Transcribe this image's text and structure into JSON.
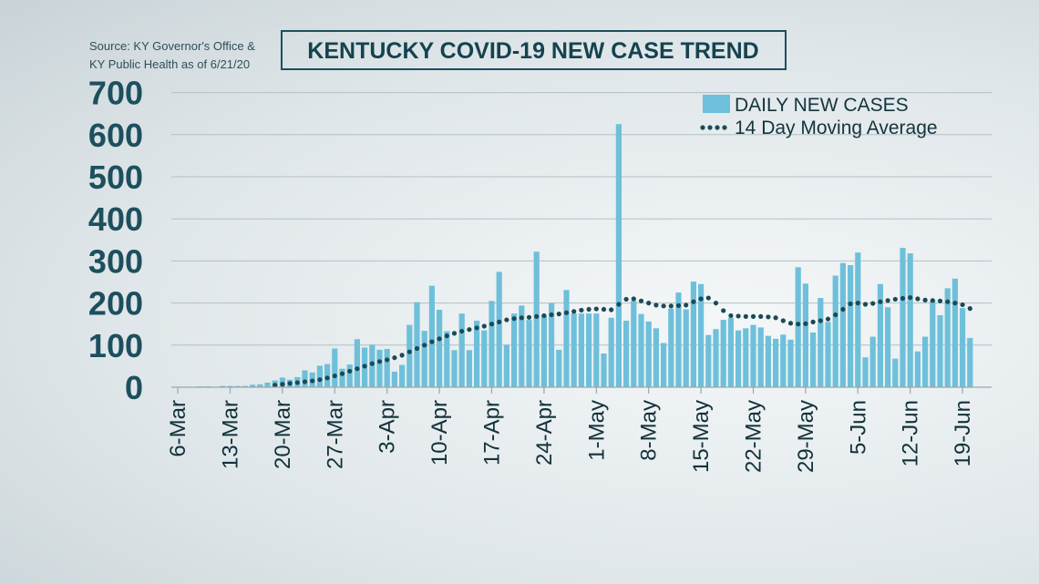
{
  "chart_data": {
    "type": "bar",
    "title": "KENTUCKY COVID-19 NEW CASE TREND",
    "source_lines": [
      "Source: KY Governor's Office &",
      "KY Public Health as of 6/21/20"
    ],
    "ylim": [
      0,
      700
    ],
    "yticks": [
      0,
      100,
      200,
      300,
      400,
      500,
      600,
      700
    ],
    "grid": true,
    "legend_placement": "top-right",
    "x_start": "6-Mar",
    "x_tick_labels": [
      "6-Mar",
      "13-Mar",
      "20-Mar",
      "27-Mar",
      "3-Apr",
      "10-Apr",
      "17-Apr",
      "24-Apr",
      "1-May",
      "8-May",
      "15-May",
      "22-May",
      "29-May",
      "5-Jun",
      "12-Jun",
      "19-Jun"
    ],
    "series": [
      {
        "name": "DAILY NEW CASES",
        "type": "bar",
        "color": "#6ec0da",
        "values": [
          1,
          1,
          1,
          2,
          2,
          1,
          3,
          3,
          3,
          3,
          6,
          7,
          11,
          16,
          23,
          18,
          24,
          40,
          35,
          51,
          55,
          92,
          44,
          54,
          114,
          94,
          101,
          89,
          91,
          37,
          53,
          148,
          202,
          134,
          241,
          184,
          133,
          88,
          175,
          88,
          158,
          135,
          205,
          274,
          101,
          175,
          194,
          160,
          322,
          170,
          200,
          89,
          231,
          175,
          175,
          175,
          175,
          80,
          165,
          625,
          158,
          205,
          174,
          156,
          140,
          105,
          187,
          225,
          185,
          251,
          245,
          124,
          138,
          160,
          165,
          135,
          140,
          148,
          142,
          122,
          115,
          125,
          113,
          285,
          246,
          130,
          212,
          155,
          265,
          295,
          290,
          320,
          71,
          120,
          245,
          190,
          68,
          331,
          318,
          85,
          120,
          205,
          171,
          235,
          258,
          188,
          117
        ]
      },
      {
        "name": "14 Day Moving Average",
        "type": "line",
        "style": "dotted",
        "color": "#1b4a56",
        "values": [
          null,
          null,
          null,
          null,
          null,
          null,
          null,
          null,
          null,
          null,
          null,
          null,
          null,
          5,
          7,
          9,
          11,
          13,
          15,
          18,
          22,
          27,
          32,
          38,
          44,
          50,
          56,
          61,
          65,
          70,
          76,
          84,
          92,
          100,
          108,
          115,
          122,
          128,
          133,
          137,
          141,
          145,
          150,
          155,
          160,
          163,
          165,
          166,
          168,
          170,
          172,
          174,
          177,
          180,
          183,
          185,
          186,
          185,
          184,
          197,
          209,
          210,
          205,
          200,
          195,
          193,
          193,
          194,
          195,
          203,
          210,
          212,
          200,
          182,
          170,
          169,
          168,
          168,
          168,
          167,
          165,
          158,
          152,
          150,
          151,
          155,
          158,
          162,
          172,
          185,
          198,
          200,
          197,
          199,
          203,
          206,
          209,
          211,
          213,
          210,
          207,
          206,
          205,
          203,
          200,
          196,
          187
        ]
      }
    ]
  }
}
